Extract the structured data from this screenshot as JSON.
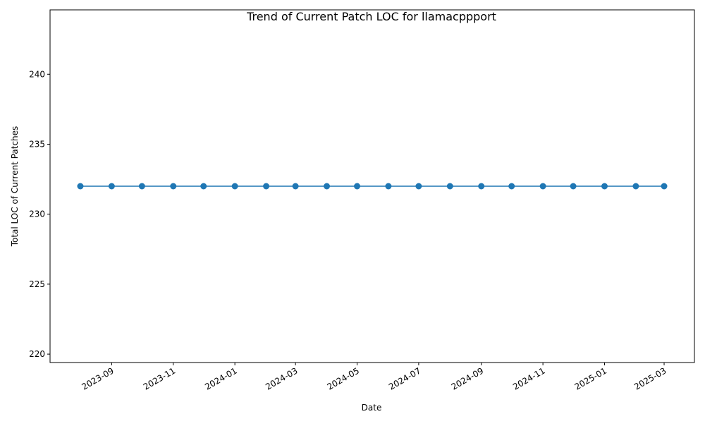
{
  "chart_data": {
    "type": "line",
    "title": "Trend of Current Patch LOC for llamacppport",
    "xlabel": "Date",
    "ylabel": "Total LOC of Current Patches",
    "x": [
      "2023-08-01",
      "2023-09-01",
      "2023-10-01",
      "2023-11-01",
      "2023-12-01",
      "2024-01-01",
      "2024-02-01",
      "2024-03-01",
      "2024-04-01",
      "2024-05-01",
      "2024-06-01",
      "2024-07-01",
      "2024-08-01",
      "2024-09-01",
      "2024-10-01",
      "2024-11-01",
      "2024-12-01",
      "2025-01-01",
      "2025-02-01",
      "2025-03-01"
    ],
    "series": [
      {
        "values": [
          232,
          232,
          232,
          232,
          232,
          232,
          232,
          232,
          232,
          232,
          232,
          232,
          232,
          232,
          232,
          232,
          232,
          232,
          232,
          232
        ],
        "color": "#1f77b4",
        "marker": "circle"
      }
    ],
    "xlim": [
      "2023-07-02",
      "2025-03-31"
    ],
    "ylim": [
      219.4,
      244.6
    ],
    "x_ticks": [
      "2023-09",
      "2023-11",
      "2024-01",
      "2024-03",
      "2024-05",
      "2024-07",
      "2024-09",
      "2024-11",
      "2025-01",
      "2025-03"
    ],
    "y_ticks": [
      220,
      225,
      230,
      235,
      240
    ],
    "grid": false,
    "legend": "none"
  }
}
